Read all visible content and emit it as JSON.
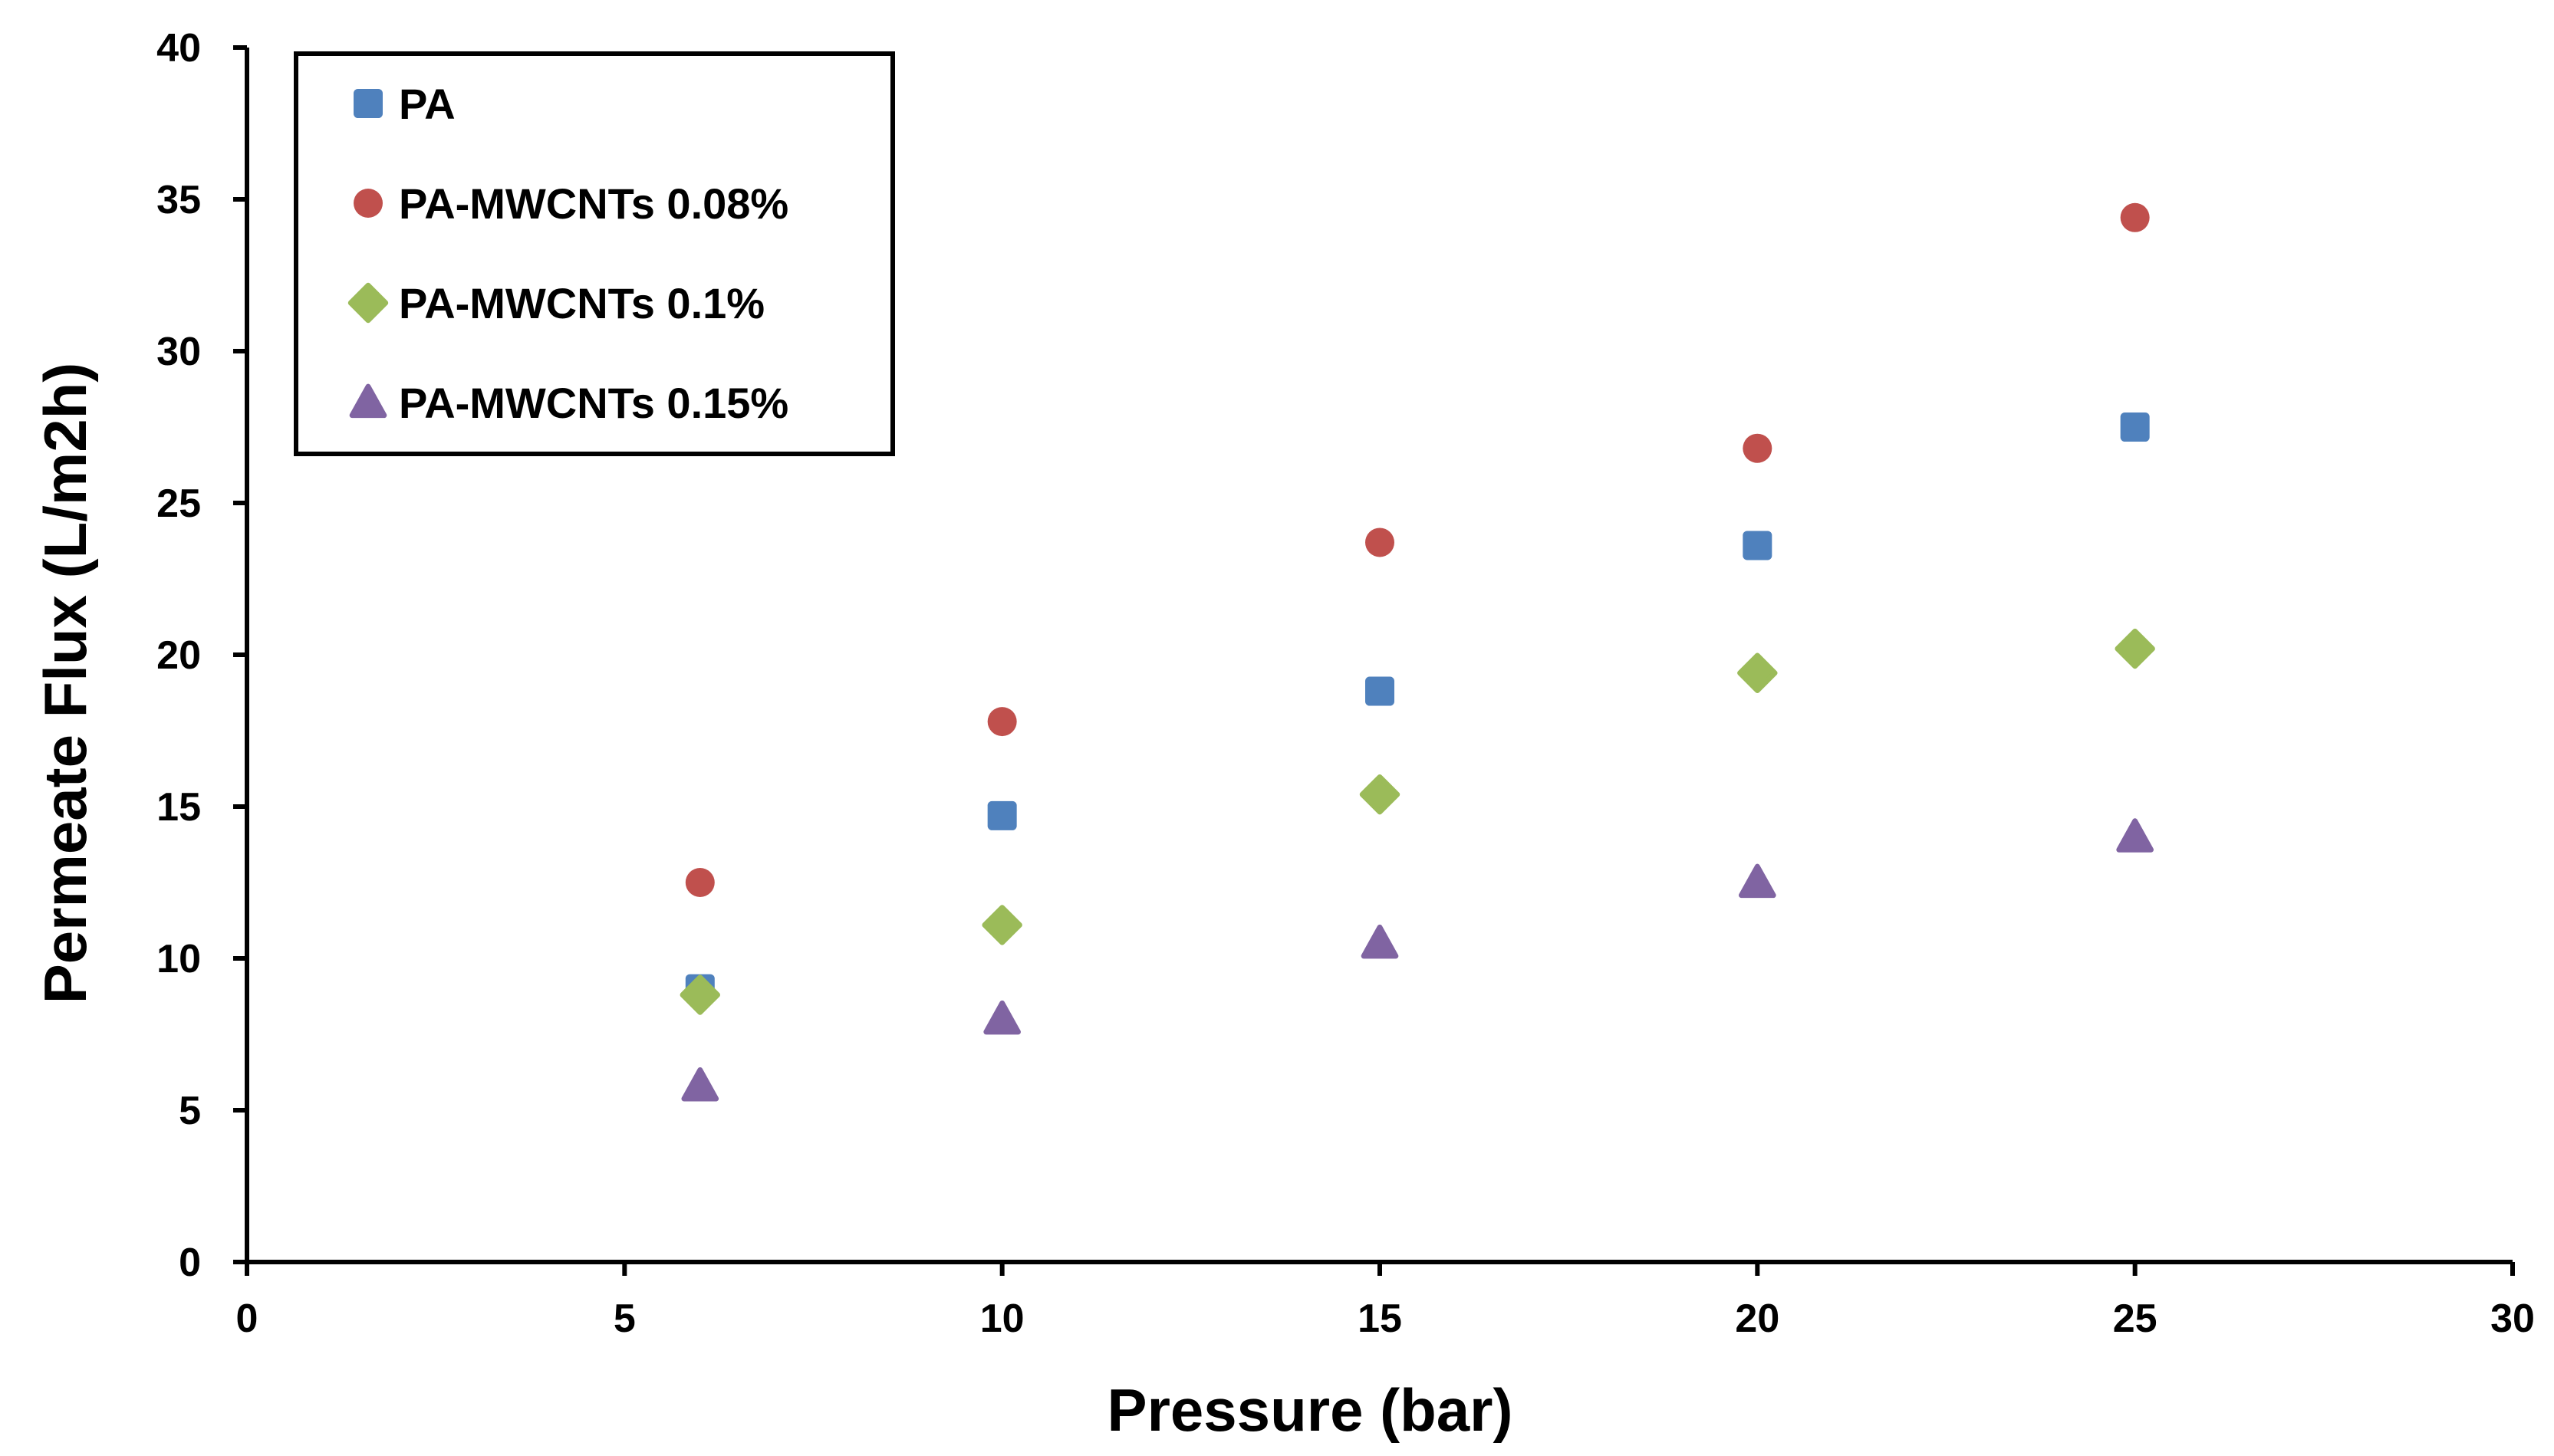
{
  "chart_data": {
    "type": "scatter",
    "title": "",
    "xlabel": "Pressure (bar)",
    "ylabel": "Permeate Flux  (L/m2h)",
    "xlim": [
      0,
      30
    ],
    "ylim": [
      0,
      40
    ],
    "x_ticks": [
      0,
      5,
      10,
      15,
      20,
      25,
      30
    ],
    "y_ticks": [
      0,
      5,
      10,
      15,
      20,
      25,
      30,
      35,
      40
    ],
    "grid": false,
    "legend_position": "top-left",
    "series": [
      {
        "name": "PA",
        "marker": "square",
        "color": "#4f81bd",
        "x": [
          6,
          10,
          15,
          20,
          25
        ],
        "y": [
          9.0,
          14.7,
          18.8,
          23.6,
          27.5
        ]
      },
      {
        "name": "PA-MWCNTs 0.08%",
        "marker": "circle",
        "color": "#c0504d",
        "x": [
          6,
          10,
          15,
          20,
          25
        ],
        "y": [
          12.5,
          17.8,
          23.7,
          26.8,
          34.4
        ]
      },
      {
        "name": "PA-MWCNTs 0.1%",
        "marker": "diamond",
        "color": "#9bbb59",
        "x": [
          6,
          10,
          15,
          20,
          25
        ],
        "y": [
          8.8,
          11.1,
          15.4,
          19.4,
          20.2
        ]
      },
      {
        "name": "PA-MWCNTs 0.15%",
        "marker": "triangle",
        "color": "#8064a2",
        "x": [
          6,
          10,
          15,
          20,
          25
        ],
        "y": [
          5.8,
          8.0,
          10.5,
          12.5,
          14.0
        ]
      }
    ]
  }
}
